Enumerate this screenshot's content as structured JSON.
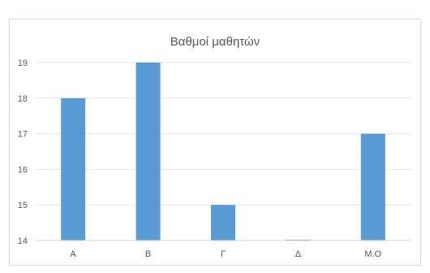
{
  "chart_data": {
    "type": "bar",
    "title": "Βαθμοί μαθητών",
    "categories": [
      "A",
      "B",
      "Γ",
      "Δ",
      "M.O"
    ],
    "values": [
      18,
      19,
      15,
      14,
      17
    ],
    "ylim": [
      14,
      19
    ],
    "yticks": [
      "14",
      "15",
      "16",
      "17",
      "18",
      "19"
    ],
    "xlabel": "",
    "ylabel": "",
    "grid": true,
    "legend": "none",
    "colors": {
      "bar": "#5b9bd5",
      "grid": "#e6e6e6",
      "axis": "#d9d9d9",
      "text": "#595959",
      "frame": "#d9d9d9"
    }
  }
}
